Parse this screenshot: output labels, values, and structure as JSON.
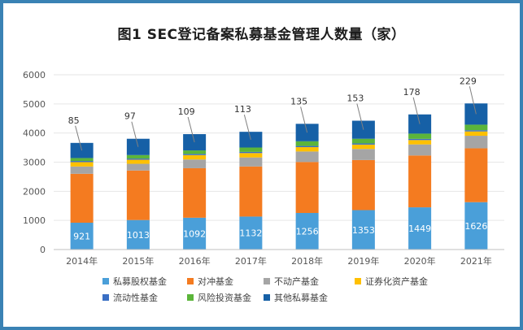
{
  "chart_data": {
    "type": "bar",
    "stacked": true,
    "title": "图1  SEC登记备案私募基金管理人数量（家）",
    "categories": [
      "2014年",
      "2015年",
      "2016年",
      "2017年",
      "2018年",
      "2019年",
      "2020年",
      "2021年"
    ],
    "ylim": [
      0,
      6000
    ],
    "yticks": [
      "0",
      "1000",
      "2000",
      "3000",
      "4000",
      "5000",
      "6000"
    ],
    "grid": true,
    "legend_position": "bottom",
    "series": [
      {
        "name": "私募股权基金",
        "color": "#4a9fd9",
        "values": [
          921,
          1013,
          1092,
          1132,
          1256,
          1353,
          1449,
          1626
        ],
        "labeled": true
      },
      {
        "name": "对冲基金",
        "color": "#f47b20",
        "values": [
          1680,
          1700,
          1700,
          1720,
          1750,
          1720,
          1780,
          1850
        ]
      },
      {
        "name": "不动产基金",
        "color": "#a5a5a5",
        "values": [
          250,
          230,
          300,
          310,
          360,
          380,
          380,
          430
        ]
      },
      {
        "name": "证券化资产基金",
        "color": "#ffc000",
        "values": [
          150,
          140,
          150,
          150,
          150,
          150,
          150,
          150
        ]
      },
      {
        "name": "流动性基金",
        "color": "#3a6fc4",
        "values": [
          40,
          40,
          40,
          40,
          40,
          40,
          40,
          40
        ]
      },
      {
        "name": "风险投资基金",
        "color": "#5bb53a",
        "values": [
          100,
          120,
          120,
          150,
          160,
          160,
          180,
          190
        ]
      },
      {
        "name": "其他私募基金",
        "color": "#1660a6",
        "values": [
          520,
          560,
          560,
          540,
          600,
          620,
          660,
          730
        ]
      }
    ],
    "annotations": [
      "85",
      "97",
      "109",
      "113",
      "135",
      "153",
      "178",
      "229"
    ]
  }
}
